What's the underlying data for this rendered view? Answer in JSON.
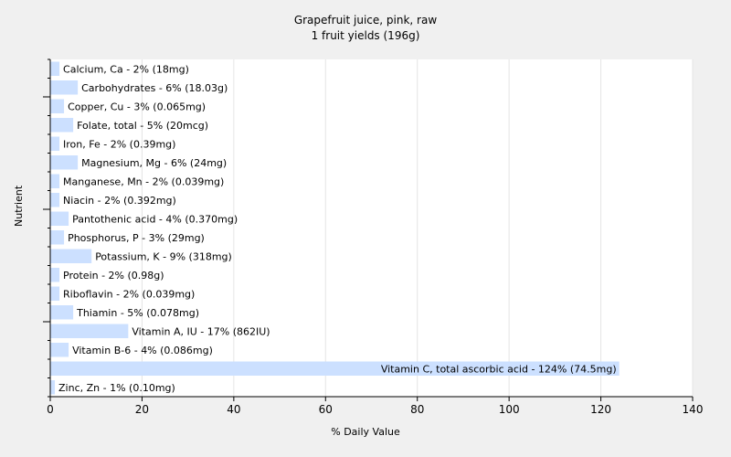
{
  "chart_data": {
    "type": "bar",
    "orientation": "horizontal",
    "title": "Grapefruit juice, pink, raw",
    "subtitle": "1 fruit yields (196g)",
    "xlabel": "% Daily Value",
    "ylabel": "Nutrient",
    "xlim": [
      0,
      140
    ],
    "xticks": [
      "0",
      "20",
      "40",
      "60",
      "80",
      "100",
      "120",
      "140"
    ],
    "grid": true,
    "bar_color": "#cce0ff",
    "categories": [
      "Calcium, Ca - 2% (18mg)",
      "Carbohydrates - 6% (18.03g)",
      "Copper, Cu - 3% (0.065mg)",
      "Folate, total - 5% (20mcg)",
      "Iron, Fe - 2% (0.39mg)",
      "Magnesium, Mg - 6% (24mg)",
      "Manganese, Mn - 2% (0.039mg)",
      "Niacin - 2% (0.392mg)",
      "Pantothenic acid - 4% (0.370mg)",
      "Phosphorus, P - 3% (29mg)",
      "Potassium, K - 9% (318mg)",
      "Protein - 2% (0.98g)",
      "Riboflavin - 2% (0.039mg)",
      "Thiamin - 5% (0.078mg)",
      "Vitamin A, IU - 17% (862IU)",
      "Vitamin B-6 - 4% (0.086mg)",
      "Vitamin C, total ascorbic acid - 124% (74.5mg)",
      "Zinc, Zn - 1% (0.10mg)"
    ],
    "values": [
      2,
      6,
      3,
      5,
      2,
      6,
      2,
      2,
      4,
      3,
      9,
      2,
      2,
      5,
      17,
      4,
      124,
      1
    ]
  }
}
